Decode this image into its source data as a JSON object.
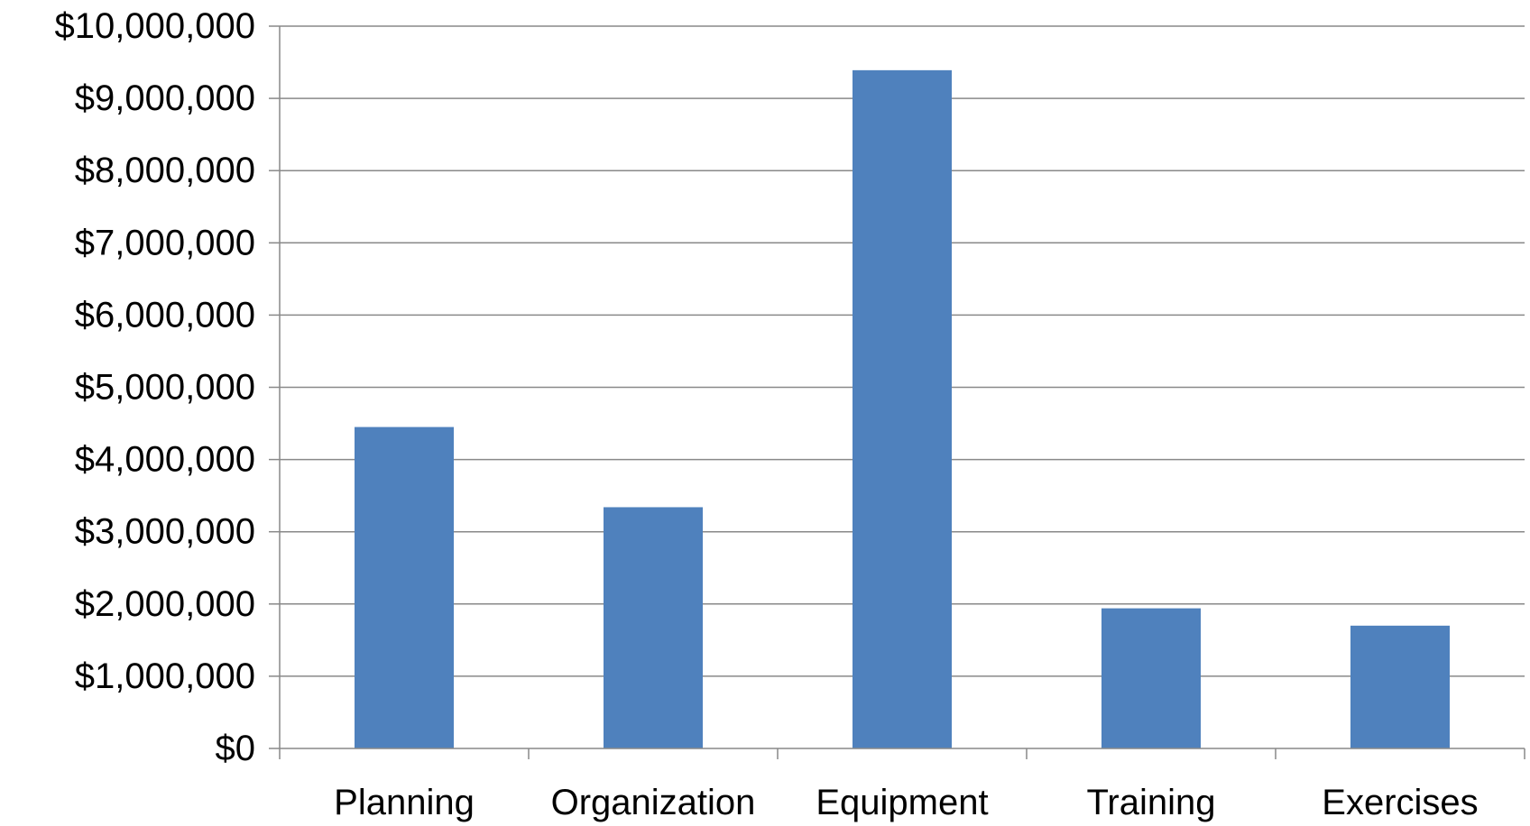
{
  "chart_data": {
    "type": "bar",
    "title": "",
    "xlabel": "",
    "ylabel": "",
    "categories": [
      "Planning",
      "Organization",
      "Equipment",
      "Training",
      "Exercises"
    ],
    "values": [
      4450000,
      3340000,
      9390000,
      1940000,
      1700000
    ],
    "ylim": [
      0,
      10000000
    ],
    "y_ticks": [
      0,
      1000000,
      2000000,
      3000000,
      4000000,
      5000000,
      6000000,
      7000000,
      8000000,
      9000000,
      10000000
    ],
    "y_tick_labels": [
      "$0",
      "$1,000,000",
      "$2,000,000",
      "$3,000,000",
      "$4,000,000",
      "$5,000,000",
      "$6,000,000",
      "$7,000,000",
      "$8,000,000",
      "$9,000,000",
      "$10,000,000"
    ],
    "grid": true,
    "legend": "none",
    "colors": {
      "bar": "#4F81BD",
      "grid": "#898989",
      "axis": "#898989",
      "text": "#000000"
    }
  }
}
